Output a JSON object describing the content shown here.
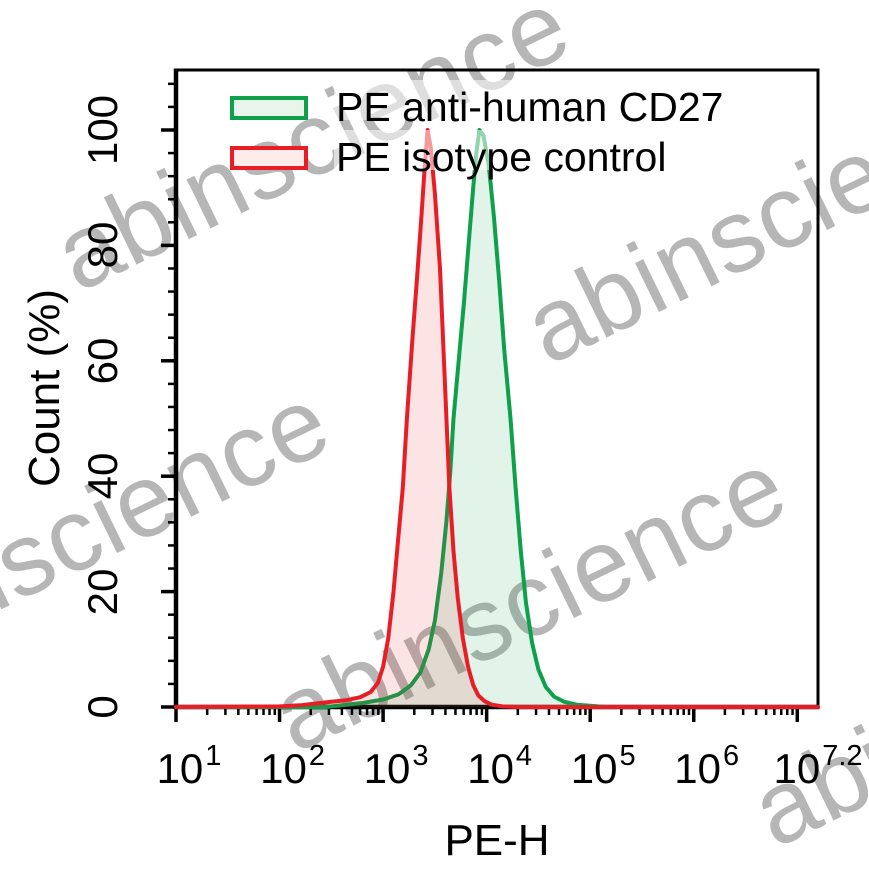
{
  "watermark": {
    "text": "abinscience",
    "color": "#b0b0b0"
  },
  "legend": {
    "items": [
      {
        "label": "PE anti-human CD27",
        "stroke": "#0fa04c",
        "fill": "#e8f5ed"
      },
      {
        "label": "PE isotype control",
        "stroke": "#e81e26",
        "fill": "#fdeaeb"
      }
    ]
  },
  "chart_data": {
    "type": "area",
    "title": "",
    "xlabel": "PE-H",
    "ylabel": "Count (%)",
    "x_scale": "log10",
    "x_range_log": [
      1,
      7.2
    ],
    "ylim": [
      0,
      100
    ],
    "grid": false,
    "legend_position": "top-left-inside",
    "y_major_ticks": [
      0,
      20,
      40,
      60,
      80,
      100
    ],
    "y_minor_step_pct": 4,
    "x_tick_labels": [
      {
        "base": "10",
        "exp": "1",
        "log": 1
      },
      {
        "base": "10",
        "exp": "2",
        "log": 2
      },
      {
        "base": "10",
        "exp": "3",
        "log": 3
      },
      {
        "base": "10",
        "exp": "4",
        "log": 4
      },
      {
        "base": "10",
        "exp": "5",
        "log": 5
      },
      {
        "base": "10",
        "exp": "6",
        "log": 6
      },
      {
        "base": "10",
        "exp": "7.2",
        "log": 7.2
      }
    ],
    "series": [
      {
        "name": "PE anti-human CD27",
        "color": "#0fa04c",
        "fill": "rgba(15,160,76,0.12)",
        "peak_log": 3.93,
        "peak_pct": 100,
        "points": [
          [
            1.0,
            0
          ],
          [
            2.45,
            0
          ],
          [
            2.6,
            0.3
          ],
          [
            2.8,
            0.7
          ],
          [
            3.0,
            1.3
          ],
          [
            3.15,
            2.2
          ],
          [
            3.27,
            3.8
          ],
          [
            3.36,
            6
          ],
          [
            3.44,
            10
          ],
          [
            3.5,
            15
          ],
          [
            3.56,
            23
          ],
          [
            3.61,
            32
          ],
          [
            3.65,
            41
          ],
          [
            3.68,
            50
          ],
          [
            3.73,
            60
          ],
          [
            3.78,
            70
          ],
          [
            3.83,
            81
          ],
          [
            3.87,
            90
          ],
          [
            3.9,
            96
          ],
          [
            3.93,
            100
          ],
          [
            3.97,
            99
          ],
          [
            4.02,
            94
          ],
          [
            4.07,
            85
          ],
          [
            4.12,
            74
          ],
          [
            4.17,
            62
          ],
          [
            4.23,
            50
          ],
          [
            4.28,
            38
          ],
          [
            4.33,
            27
          ],
          [
            4.38,
            18
          ],
          [
            4.44,
            11
          ],
          [
            4.5,
            6.5
          ],
          [
            4.57,
            3.5
          ],
          [
            4.65,
            1.8
          ],
          [
            4.75,
            0.9
          ],
          [
            4.87,
            0.4
          ],
          [
            5.0,
            0.2
          ],
          [
            5.15,
            0
          ],
          [
            7.2,
            0
          ]
        ]
      },
      {
        "name": "PE isotype control",
        "color": "#e81e26",
        "fill": "rgba(232,30,38,0.12)",
        "peak_log": 3.43,
        "peak_pct": 100,
        "points": [
          [
            1.0,
            0
          ],
          [
            2.0,
            0.1
          ],
          [
            2.2,
            0.3
          ],
          [
            2.35,
            0.6
          ],
          [
            2.5,
            0.9
          ],
          [
            2.65,
            1.2
          ],
          [
            2.78,
            1.7
          ],
          [
            2.88,
            2.6
          ],
          [
            2.95,
            4.2
          ],
          [
            3.0,
            7
          ],
          [
            3.05,
            12
          ],
          [
            3.1,
            20
          ],
          [
            3.14,
            28
          ],
          [
            3.19,
            38
          ],
          [
            3.23,
            50
          ],
          [
            3.28,
            63
          ],
          [
            3.33,
            75
          ],
          [
            3.37,
            85
          ],
          [
            3.4,
            93
          ],
          [
            3.43,
            100
          ],
          [
            3.46,
            97
          ],
          [
            3.5,
            89
          ],
          [
            3.55,
            76
          ],
          [
            3.6,
            55
          ],
          [
            3.64,
            38
          ],
          [
            3.68,
            27
          ],
          [
            3.72,
            19
          ],
          [
            3.77,
            12
          ],
          [
            3.82,
            7
          ],
          [
            3.87,
            3.8
          ],
          [
            3.92,
            2
          ],
          [
            3.98,
            1
          ],
          [
            4.05,
            0.4
          ],
          [
            4.15,
            0.1
          ],
          [
            4.3,
            0
          ],
          [
            7.2,
            0
          ]
        ]
      }
    ]
  }
}
